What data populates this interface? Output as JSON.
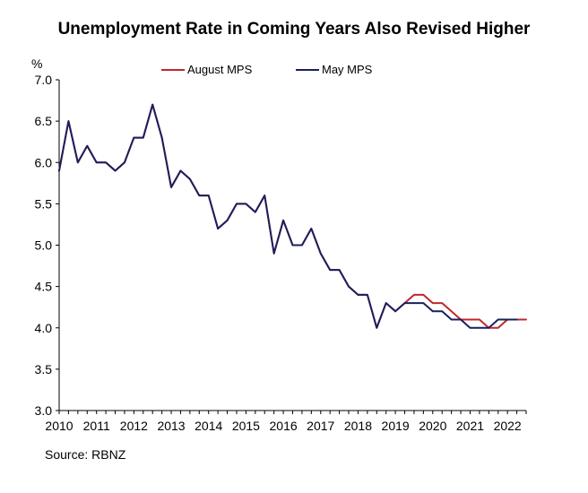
{
  "title": "Unemployment Rate in Coming Years Also Revised Higher",
  "source": "Source: RBNZ",
  "chart_data": {
    "type": "line",
    "title": "Unemployment Rate in Coming Years Also Revised Higher",
    "ylabel": "%",
    "xlabel": "",
    "ylim": [
      3.0,
      7.0
    ],
    "y_ticks": [
      "3.0",
      "3.5",
      "4.0",
      "4.5",
      "5.0",
      "5.5",
      "6.0",
      "6.5",
      "7.0"
    ],
    "x_ticks": [
      "2010",
      "2011",
      "2012",
      "2013",
      "2014",
      "2015",
      "2016",
      "2017",
      "2018",
      "2019",
      "2020",
      "2021",
      "2022"
    ],
    "x_start": 2010,
    "x_step": 0.25,
    "legend": "top",
    "series": [
      {
        "name": "August MPS",
        "color": "#c0272d",
        "values": [
          5.9,
          6.5,
          6.0,
          6.2,
          6.0,
          6.0,
          5.9,
          6.0,
          6.3,
          6.3,
          6.7,
          6.3,
          5.7,
          5.9,
          5.8,
          5.6,
          5.6,
          5.2,
          5.3,
          5.5,
          5.5,
          5.4,
          5.6,
          4.9,
          5.3,
          5.0,
          5.0,
          5.2,
          4.9,
          4.7,
          4.7,
          4.5,
          4.4,
          4.4,
          4.0,
          4.3,
          4.2,
          4.3,
          4.4,
          4.4,
          4.3,
          4.3,
          4.2,
          4.1,
          4.1,
          4.1,
          4.0,
          4.0,
          4.1,
          4.1,
          4.1
        ]
      },
      {
        "name": "May MPS",
        "color": "#1a1f5e",
        "values": [
          5.9,
          6.5,
          6.0,
          6.2,
          6.0,
          6.0,
          5.9,
          6.0,
          6.3,
          6.3,
          6.7,
          6.3,
          5.7,
          5.9,
          5.8,
          5.6,
          5.6,
          5.2,
          5.3,
          5.5,
          5.5,
          5.4,
          5.6,
          4.9,
          5.3,
          5.0,
          5.0,
          5.2,
          4.9,
          4.7,
          4.7,
          4.5,
          4.4,
          4.4,
          4.0,
          4.3,
          4.2,
          4.3,
          4.3,
          4.3,
          4.2,
          4.2,
          4.1,
          4.1,
          4.0,
          4.0,
          4.0,
          4.1,
          4.1,
          4.1
        ]
      }
    ]
  }
}
